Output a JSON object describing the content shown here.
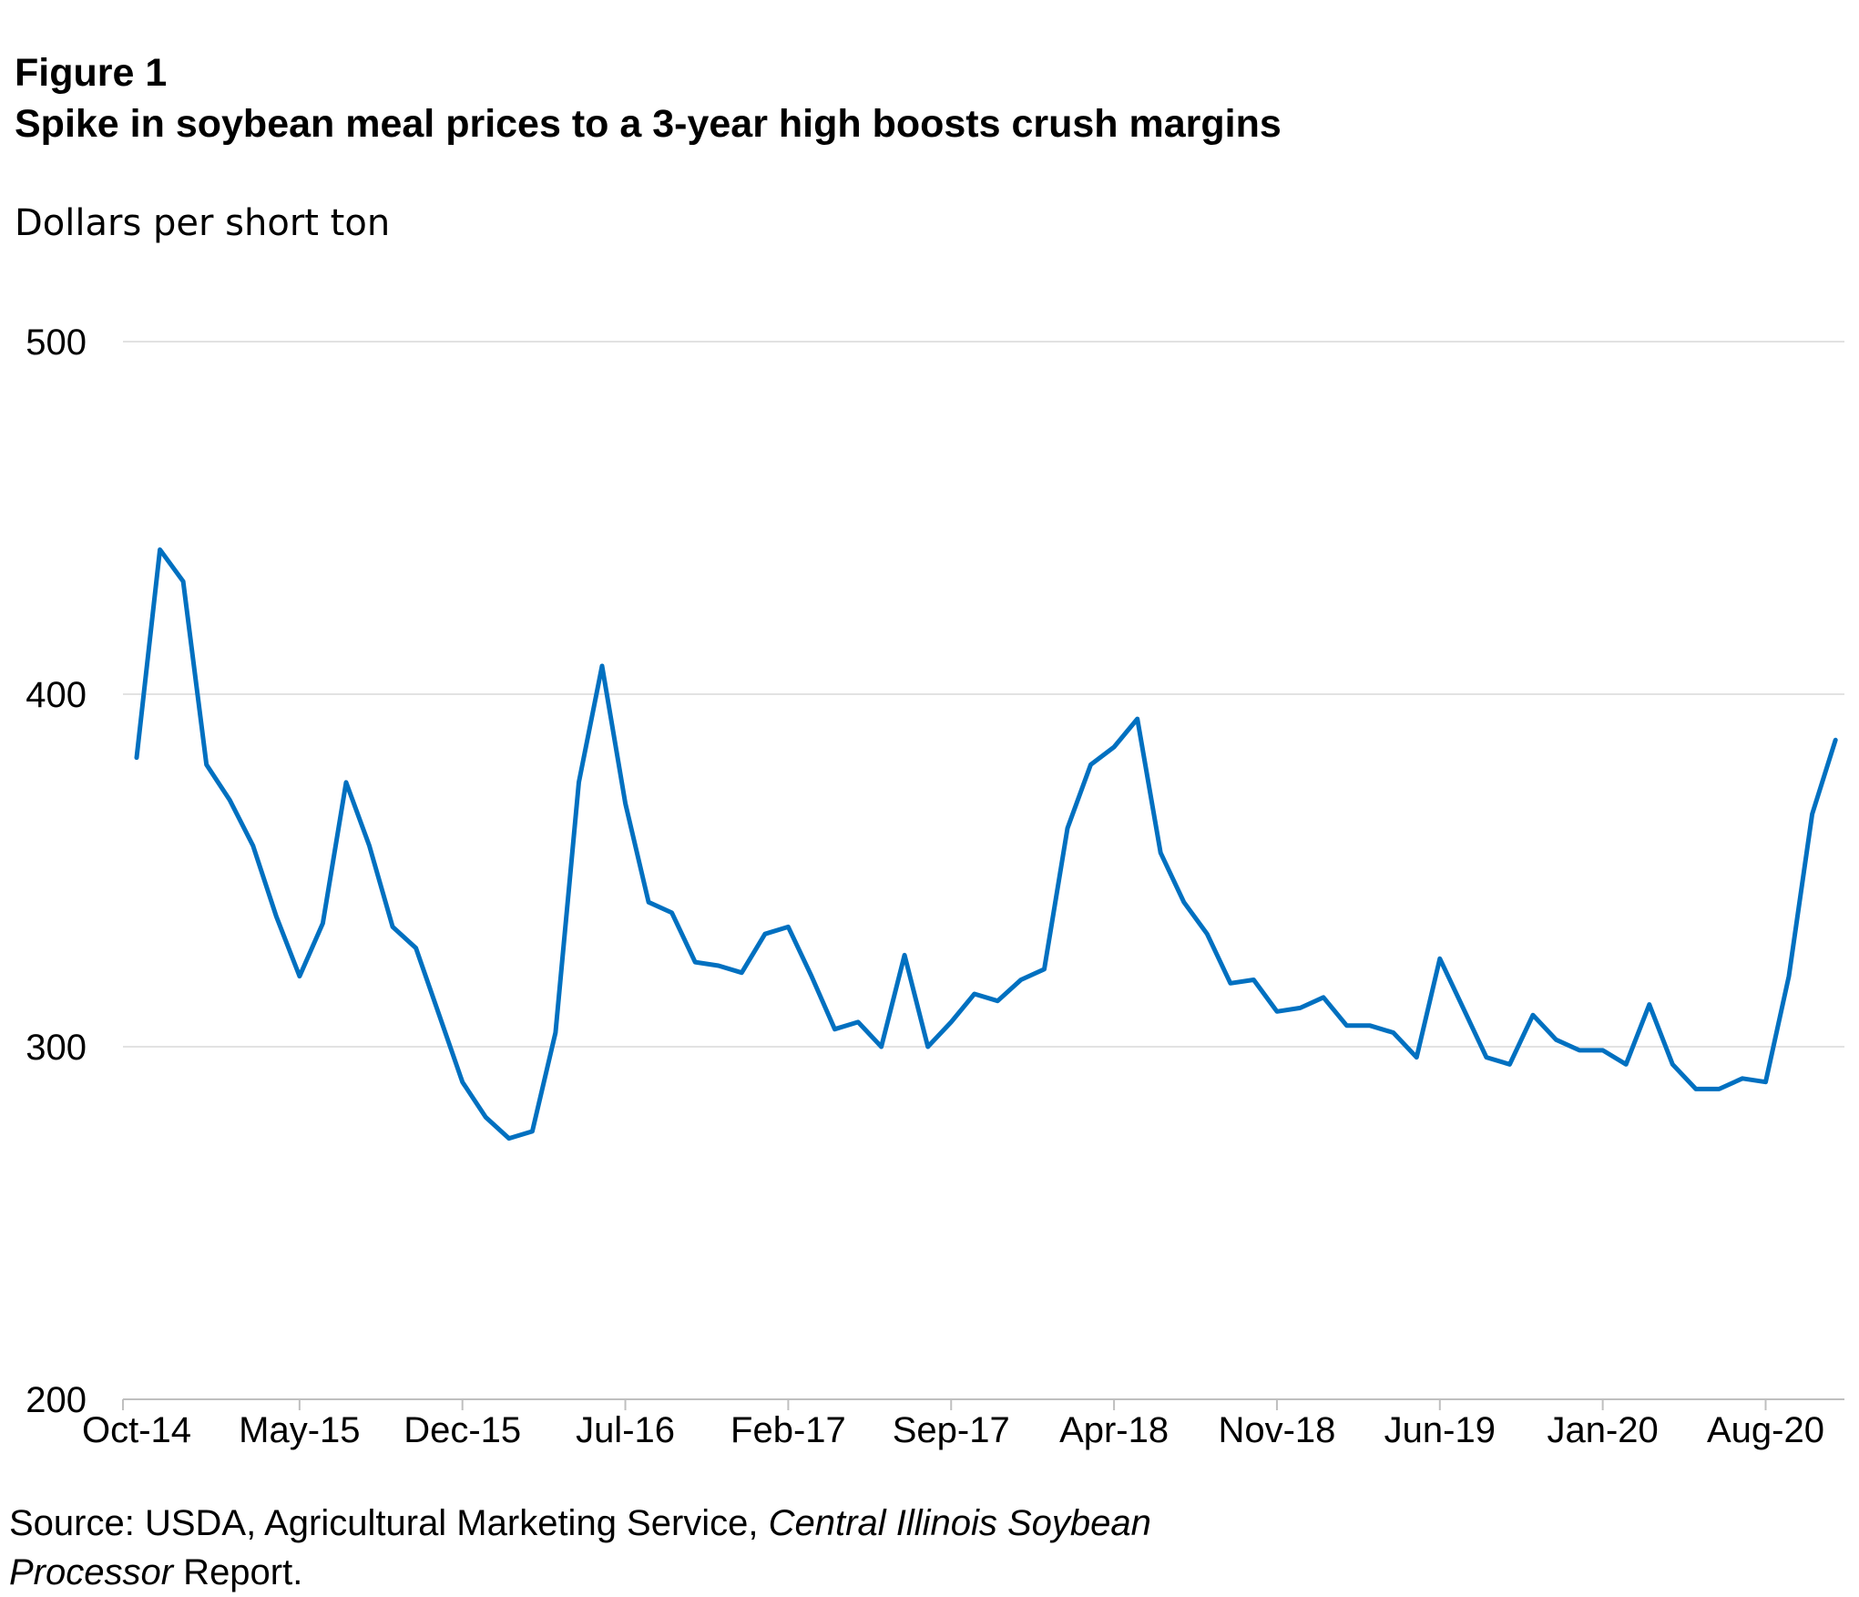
{
  "figure_label": "Figure 1",
  "chart_data": {
    "type": "line",
    "title": "Spike in soybean meal prices to a 3-year high boosts crush margins",
    "ylabel": "Dollars per short ton",
    "xlabel": "",
    "ylim": [
      200,
      500
    ],
    "yticks": [
      200,
      300,
      400,
      500
    ],
    "xtick_labels": [
      "Oct-14",
      "May-15",
      "Dec-15",
      "Jul-16",
      "Feb-17",
      "Sep-17",
      "Apr-18",
      "Nov-18",
      "Jun-19",
      "Jan-20",
      "Aug-20"
    ],
    "x": [
      "Oct-14",
      "Nov-14",
      "Dec-14",
      "Jan-15",
      "Feb-15",
      "Mar-15",
      "Apr-15",
      "May-15",
      "Jun-15",
      "Jul-15",
      "Aug-15",
      "Sep-15",
      "Oct-15",
      "Nov-15",
      "Dec-15",
      "Jan-16",
      "Feb-16",
      "Mar-16",
      "Apr-16",
      "May-16",
      "Jun-16",
      "Jul-16",
      "Aug-16",
      "Sep-16",
      "Oct-16",
      "Nov-16",
      "Dec-16",
      "Jan-17",
      "Feb-17",
      "Mar-17",
      "Apr-17",
      "May-17",
      "Jun-17",
      "Jul-17",
      "Aug-17",
      "Sep-17",
      "Oct-17",
      "Nov-17",
      "Dec-17",
      "Jan-18",
      "Feb-18",
      "Mar-18",
      "Apr-18",
      "May-18",
      "Jun-18",
      "Jul-18",
      "Aug-18",
      "Sep-18",
      "Oct-18",
      "Nov-18",
      "Dec-18",
      "Jan-19",
      "Feb-19",
      "Mar-19",
      "Apr-19",
      "May-19",
      "Jun-19",
      "Jul-19",
      "Aug-19",
      "Sep-19",
      "Oct-19",
      "Nov-19",
      "Dec-19",
      "Jan-20",
      "Feb-20",
      "Mar-20",
      "Apr-20",
      "May-20",
      "Jun-20",
      "Jul-20",
      "Aug-20",
      "Sep-20",
      "Oct-20",
      "Nov-20"
    ],
    "series": [
      {
        "color": "#0070C0",
        "values": [
          382,
          441,
          432,
          380,
          370,
          357,
          337,
          320,
          335,
          375,
          357,
          334,
          328,
          309,
          290,
          280,
          274,
          276,
          304,
          375,
          408,
          369,
          341,
          338,
          324,
          323,
          321,
          332,
          334,
          320,
          305,
          307,
          300,
          326,
          300,
          307,
          315,
          313,
          319,
          322,
          362,
          380,
          385,
          393,
          355,
          341,
          332,
          318,
          319,
          310,
          311,
          314,
          306,
          306,
          304,
          297,
          325,
          311,
          297,
          295,
          309,
          302,
          299,
          299,
          295,
          312,
          295,
          288,
          288,
          291,
          290,
          320,
          366,
          387
        ]
      }
    ],
    "grid": true,
    "legend": "none"
  },
  "source": {
    "prefix": "Source: USDA, Agricultural Marketing Service, ",
    "italic1": "Central Illinois Soybean",
    "italic2": "Processor",
    "suffix": " Report."
  }
}
